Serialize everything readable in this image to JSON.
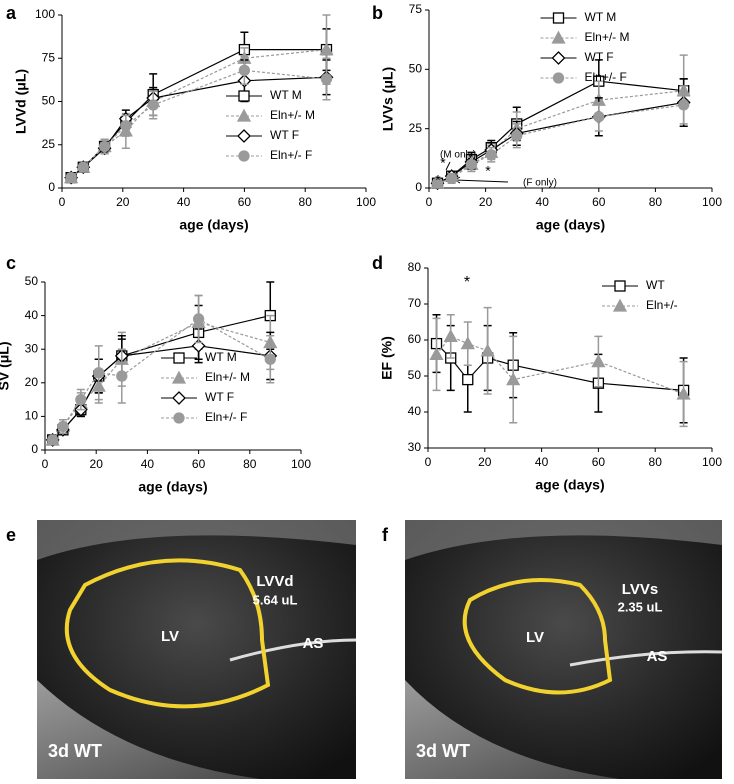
{
  "chart_data": [
    {
      "type": "line",
      "panel": "a",
      "ylabel": "LVVd (μL)",
      "xlabel": "age (days)",
      "xlim": [
        0,
        100
      ],
      "xticks": [
        0,
        20,
        40,
        60,
        80,
        100
      ],
      "ylim": [
        0,
        100
      ],
      "yticks": [
        0,
        25,
        50,
        75,
        100
      ],
      "legend": "lower right",
      "x": [
        3,
        7,
        14,
        21,
        30,
        60,
        87
      ],
      "series": [
        {
          "name": "WT M",
          "color": "#000000",
          "marker": "square",
          "dashed": false,
          "values": [
            6,
            12,
            24,
            38,
            54,
            80,
            80
          ],
          "errors": [
            1,
            2,
            4,
            4,
            12,
            10,
            12
          ]
        },
        {
          "name": "Eln+/- M",
          "color": "#9a9a9a",
          "marker": "triangle",
          "dashed": true,
          "values": [
            6,
            12,
            24,
            33,
            50,
            75,
            80
          ],
          "errors": [
            1,
            2,
            4,
            10,
            8,
            6,
            20
          ]
        },
        {
          "name": "WT F",
          "color": "#000000",
          "marker": "diamond",
          "dashed": false,
          "values": [
            6,
            12,
            23,
            40,
            52,
            62,
            64
          ],
          "errors": [
            1,
            2,
            3,
            5,
            6,
            12,
            10
          ]
        },
        {
          "name": "Eln+/- F",
          "color": "#9a9a9a",
          "marker": "circle",
          "dashed": true,
          "values": [
            6,
            12,
            24,
            36,
            48,
            68,
            63
          ],
          "errors": [
            1,
            2,
            4,
            6,
            8,
            8,
            12
          ]
        }
      ]
    },
    {
      "type": "line",
      "panel": "b",
      "ylabel": "LVVs (μL)",
      "xlabel": "age (days)",
      "xlim": [
        0,
        100
      ],
      "xticks": [
        0,
        20,
        40,
        60,
        80,
        100
      ],
      "ylim": [
        0,
        75
      ],
      "yticks": [
        0,
        25,
        50,
        75
      ],
      "legend": "upper center",
      "x": [
        3,
        8,
        15,
        22,
        31,
        60,
        90
      ],
      "annotations": [
        "(M only)",
        "*",
        "*",
        "*",
        "(F only)"
      ],
      "series": [
        {
          "name": "WT M",
          "color": "#000000",
          "marker": "square",
          "dashed": false,
          "values": [
            2,
            5,
            12,
            17,
            27,
            45,
            41
          ],
          "errors": [
            1,
            2,
            3,
            3,
            7,
            9,
            5
          ]
        },
        {
          "name": "Eln+/- M",
          "color": "#9a9a9a",
          "marker": "triangle",
          "dashed": true,
          "values": [
            2,
            5,
            10,
            15,
            25,
            37,
            41
          ],
          "errors": [
            1,
            2,
            3,
            3,
            7,
            8,
            15
          ]
        },
        {
          "name": "WT F",
          "color": "#000000",
          "marker": "diamond",
          "dashed": false,
          "values": [
            2,
            5,
            11,
            16,
            23,
            30,
            36
          ],
          "errors": [
            1,
            2,
            3,
            3,
            5,
            8,
            10
          ]
        },
        {
          "name": "Eln+/- F",
          "color": "#9a9a9a",
          "marker": "circle",
          "dashed": true,
          "values": [
            2,
            4,
            10,
            14,
            22,
            30,
            35
          ],
          "errors": [
            1,
            2,
            3,
            3,
            5,
            6,
            8
          ]
        }
      ]
    },
    {
      "type": "line",
      "panel": "c",
      "ylabel": "SV (μL)",
      "xlabel": "age (days)",
      "xlim": [
        0,
        100
      ],
      "xticks": [
        0,
        20,
        40,
        60,
        80,
        100
      ],
      "ylim": [
        0,
        50
      ],
      "yticks": [
        0,
        10,
        20,
        30,
        40,
        50
      ],
      "legend": "lower right",
      "x": [
        3,
        7,
        14,
        21,
        30,
        60,
        88
      ],
      "series": [
        {
          "name": "WT M",
          "color": "#000000",
          "marker": "square",
          "dashed": false,
          "values": [
            3,
            6,
            12,
            22,
            28,
            35,
            40
          ],
          "errors": [
            1,
            1,
            2,
            5,
            5,
            8,
            10
          ]
        },
        {
          "name": "Eln+/- M",
          "color": "#9a9a9a",
          "marker": "triangle",
          "dashed": true,
          "values": [
            3,
            7,
            14,
            19,
            27,
            38,
            32
          ],
          "errors": [
            1,
            1,
            3,
            5,
            8,
            8,
            8
          ]
        },
        {
          "name": "WT F",
          "color": "#000000",
          "marker": "diamond",
          "dashed": false,
          "values": [
            3,
            6,
            12,
            22,
            28,
            31,
            28
          ],
          "errors": [
            1,
            1,
            2,
            5,
            6,
            5,
            7
          ]
        },
        {
          "name": "Eln+/- F",
          "color": "#9a9a9a",
          "marker": "circle",
          "dashed": true,
          "values": [
            3,
            7,
            15,
            23,
            22,
            39,
            27
          ],
          "errors": [
            1,
            2,
            3,
            8,
            8,
            7,
            7
          ]
        }
      ]
    },
    {
      "type": "line",
      "panel": "d",
      "ylabel": "EF (%)",
      "xlabel": "age (days)",
      "xlim": [
        0,
        100
      ],
      "xticks": [
        0,
        20,
        40,
        60,
        80,
        100
      ],
      "ylim": [
        30,
        80
      ],
      "yticks": [
        30,
        40,
        50,
        60,
        70,
        80
      ],
      "legend": "upper right",
      "x": [
        3,
        8,
        14,
        21,
        30,
        60,
        90
      ],
      "annotations": [
        "*"
      ],
      "series": [
        {
          "name": "WT",
          "color": "#000000",
          "marker": "square",
          "dashed": false,
          "values": [
            59,
            55,
            49,
            55,
            53,
            48,
            46
          ],
          "errors": [
            8,
            9,
            9,
            9,
            9,
            8,
            9
          ]
        },
        {
          "name": "Eln+/-",
          "color": "#9a9a9a",
          "marker": "triangle",
          "dashed": true,
          "values": [
            56,
            61,
            59,
            57,
            49,
            54,
            45
          ],
          "errors": [
            10,
            6,
            6,
            12,
            12,
            7,
            9
          ]
        }
      ]
    }
  ],
  "images": [
    {
      "panel": "e",
      "cavity": "LV",
      "volume_label": "LVVd",
      "volume": "5.64 uL",
      "septum": "AS",
      "caption": "3d WT"
    },
    {
      "panel": "f",
      "cavity": "LV",
      "volume_label": "LVVs",
      "volume": "2.35 uL",
      "septum": "AS",
      "caption": "3d WT"
    }
  ]
}
